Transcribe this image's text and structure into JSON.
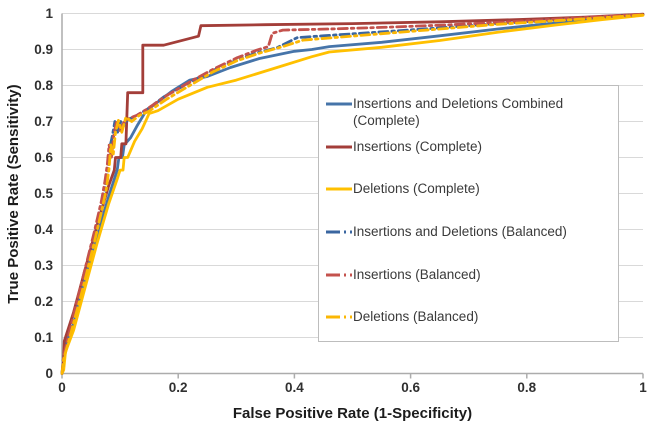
{
  "chart_data": {
    "type": "line",
    "title": "",
    "xlabel": "False Positive Rate (1-Specificity)",
    "ylabel": "True Positive Rate (Sensitivity)",
    "xlim": [
      0,
      1
    ],
    "ylim": [
      0,
      1
    ],
    "x_ticks": [
      "0",
      "0.2",
      "0.4",
      "0.6",
      "0.8",
      "1"
    ],
    "y_ticks": [
      "0",
      "0.1",
      "0.2",
      "0.3",
      "0.4",
      "0.5",
      "0.6",
      "0.7",
      "0.8",
      "0.9",
      "1"
    ],
    "grid": "horizontal",
    "legend_position": "middle-right-boxed",
    "colors": {
      "grid": "#D9D9D9",
      "axis": "#ACACAC",
      "tick_label": "#303030",
      "axis_title": "#1C1C1C",
      "legend_border": "#BDBDBD",
      "legend_text": "#3A3A3A"
    },
    "series": [
      {
        "name": "Insertions and Deletions Combined (Complete)",
        "line_style": "solid",
        "color": "#4674A9",
        "points": [
          [
            0,
            0
          ],
          [
            0.003,
            0.02
          ],
          [
            0.006,
            0.08
          ],
          [
            0.02,
            0.14
          ],
          [
            0.04,
            0.26
          ],
          [
            0.06,
            0.38
          ],
          [
            0.08,
            0.49
          ],
          [
            0.095,
            0.565
          ],
          [
            0.098,
            0.6
          ],
          [
            0.104,
            0.6
          ],
          [
            0.107,
            0.635
          ],
          [
            0.118,
            0.655
          ],
          [
            0.13,
            0.69
          ],
          [
            0.145,
            0.73
          ],
          [
            0.19,
            0.785
          ],
          [
            0.22,
            0.815
          ],
          [
            0.25,
            0.825
          ],
          [
            0.29,
            0.85
          ],
          [
            0.34,
            0.875
          ],
          [
            0.4,
            0.895
          ],
          [
            0.43,
            0.9
          ],
          [
            0.46,
            0.908
          ],
          [
            0.55,
            0.92
          ],
          [
            0.65,
            0.938
          ],
          [
            0.75,
            0.957
          ],
          [
            0.85,
            0.974
          ],
          [
            0.93,
            0.986
          ],
          [
            1,
            0.997
          ]
        ]
      },
      {
        "name": "Insertions (Complete)",
        "line_style": "solid",
        "color": "#A33E39",
        "points": [
          [
            0,
            0
          ],
          [
            0.002,
            0.02
          ],
          [
            0.004,
            0.09
          ],
          [
            0.02,
            0.17
          ],
          [
            0.04,
            0.29
          ],
          [
            0.06,
            0.41
          ],
          [
            0.08,
            0.52
          ],
          [
            0.09,
            0.565
          ],
          [
            0.092,
            0.6
          ],
          [
            0.101,
            0.6
          ],
          [
            0.103,
            0.638
          ],
          [
            0.11,
            0.638
          ],
          [
            0.113,
            0.78
          ],
          [
            0.139,
            0.78
          ],
          [
            0.139,
            0.912
          ],
          [
            0.175,
            0.912
          ],
          [
            0.235,
            0.937
          ],
          [
            0.239,
            0.966
          ],
          [
            0.35,
            0.969
          ],
          [
            0.5,
            0.972
          ],
          [
            0.65,
            0.977
          ],
          [
            0.8,
            0.984
          ],
          [
            0.9,
            0.99
          ],
          [
            1,
            0.998
          ]
        ]
      },
      {
        "name": "Deletions (Complete)",
        "line_style": "solid",
        "color": "#FFC000",
        "points": [
          [
            0,
            0
          ],
          [
            0.003,
            0.01
          ],
          [
            0.006,
            0.06
          ],
          [
            0.02,
            0.12
          ],
          [
            0.04,
            0.24
          ],
          [
            0.06,
            0.36
          ],
          [
            0.08,
            0.47
          ],
          [
            0.095,
            0.54
          ],
          [
            0.1,
            0.565
          ],
          [
            0.105,
            0.565
          ],
          [
            0.107,
            0.6
          ],
          [
            0.113,
            0.6
          ],
          [
            0.125,
            0.645
          ],
          [
            0.138,
            0.68
          ],
          [
            0.15,
            0.722
          ],
          [
            0.165,
            0.73
          ],
          [
            0.2,
            0.762
          ],
          [
            0.25,
            0.795
          ],
          [
            0.3,
            0.815
          ],
          [
            0.37,
            0.85
          ],
          [
            0.43,
            0.88
          ],
          [
            0.46,
            0.893
          ],
          [
            0.55,
            0.906
          ],
          [
            0.65,
            0.925
          ],
          [
            0.75,
            0.948
          ],
          [
            0.85,
            0.968
          ],
          [
            0.93,
            0.983
          ],
          [
            1,
            0.995
          ]
        ]
      },
      {
        "name": "Insertions and Deletions (Balanced)",
        "line_style": "dashed",
        "color": "#3A66A0",
        "points": [
          [
            0,
            0
          ],
          [
            0.003,
            0.05
          ],
          [
            0.015,
            0.12
          ],
          [
            0.035,
            0.25
          ],
          [
            0.055,
            0.38
          ],
          [
            0.068,
            0.46
          ],
          [
            0.075,
            0.52
          ],
          [
            0.079,
            0.565
          ],
          [
            0.082,
            0.625
          ],
          [
            0.086,
            0.655
          ],
          [
            0.091,
            0.7
          ],
          [
            0.096,
            0.668
          ],
          [
            0.101,
            0.7
          ],
          [
            0.106,
            0.688
          ],
          [
            0.113,
            0.705
          ],
          [
            0.126,
            0.715
          ],
          [
            0.145,
            0.732
          ],
          [
            0.175,
            0.768
          ],
          [
            0.21,
            0.8
          ],
          [
            0.25,
            0.835
          ],
          [
            0.29,
            0.863
          ],
          [
            0.33,
            0.888
          ],
          [
            0.37,
            0.905
          ],
          [
            0.405,
            0.933
          ],
          [
            0.45,
            0.938
          ],
          [
            0.55,
            0.949
          ],
          [
            0.65,
            0.96
          ],
          [
            0.75,
            0.972
          ],
          [
            0.85,
            0.982
          ],
          [
            0.93,
            0.99
          ],
          [
            1,
            0.997
          ]
        ]
      },
      {
        "name": "Insertions (Balanced)",
        "line_style": "dashed",
        "color": "#C4524D",
        "points": [
          [
            0,
            0
          ],
          [
            0.003,
            0.05
          ],
          [
            0.015,
            0.13
          ],
          [
            0.035,
            0.26
          ],
          [
            0.055,
            0.39
          ],
          [
            0.068,
            0.48
          ],
          [
            0.074,
            0.535
          ],
          [
            0.078,
            0.58
          ],
          [
            0.081,
            0.635
          ],
          [
            0.085,
            0.6
          ],
          [
            0.089,
            0.66
          ],
          [
            0.094,
            0.7
          ],
          [
            0.1,
            0.675
          ],
          [
            0.107,
            0.7
          ],
          [
            0.115,
            0.708
          ],
          [
            0.13,
            0.718
          ],
          [
            0.145,
            0.733
          ],
          [
            0.18,
            0.772
          ],
          [
            0.22,
            0.81
          ],
          [
            0.26,
            0.845
          ],
          [
            0.3,
            0.876
          ],
          [
            0.335,
            0.898
          ],
          [
            0.355,
            0.908
          ],
          [
            0.362,
            0.945
          ],
          [
            0.38,
            0.954
          ],
          [
            0.46,
            0.957
          ],
          [
            0.56,
            0.962
          ],
          [
            0.66,
            0.968
          ],
          [
            0.76,
            0.976
          ],
          [
            0.86,
            0.985
          ],
          [
            1,
            0.998
          ]
        ]
      },
      {
        "name": "Deletions (Balanced)",
        "line_style": "dashed",
        "color": "#FBB704",
        "points": [
          [
            0,
            0
          ],
          [
            0.003,
            0.04
          ],
          [
            0.015,
            0.11
          ],
          [
            0.035,
            0.23
          ],
          [
            0.055,
            0.36
          ],
          [
            0.068,
            0.45
          ],
          [
            0.076,
            0.51
          ],
          [
            0.081,
            0.57
          ],
          [
            0.084,
            0.635
          ],
          [
            0.088,
            0.605
          ],
          [
            0.092,
            0.67
          ],
          [
            0.097,
            0.703
          ],
          [
            0.103,
            0.67
          ],
          [
            0.11,
            0.712
          ],
          [
            0.12,
            0.7
          ],
          [
            0.133,
            0.717
          ],
          [
            0.148,
            0.727
          ],
          [
            0.18,
            0.762
          ],
          [
            0.22,
            0.8
          ],
          [
            0.26,
            0.838
          ],
          [
            0.3,
            0.868
          ],
          [
            0.34,
            0.89
          ],
          [
            0.38,
            0.908
          ],
          [
            0.415,
            0.926
          ],
          [
            0.46,
            0.932
          ],
          [
            0.55,
            0.944
          ],
          [
            0.65,
            0.957
          ],
          [
            0.75,
            0.97
          ],
          [
            0.85,
            0.98
          ],
          [
            0.93,
            0.988
          ],
          [
            1,
            0.996
          ]
        ]
      }
    ]
  }
}
